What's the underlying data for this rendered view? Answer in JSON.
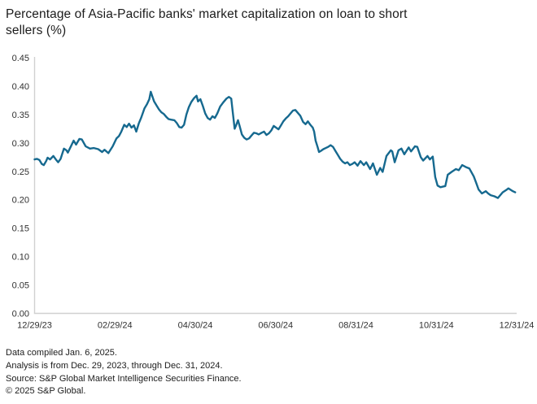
{
  "chart_data": {
    "type": "line",
    "title": "Percentage of Asia-Pacific banks' market capitalization on loan to short sellers (%)",
    "title_line1": "Percentage of Asia-Pacific banks' market capitalization on loan to short",
    "title_line2": "sellers (%)",
    "xlabel": "",
    "ylabel": "",
    "ylim": [
      0,
      0.45
    ],
    "grid": false,
    "legend": false,
    "line_color": "#16698f",
    "axis_color": "#d0d0d0",
    "y_tick_labels": [
      "0.00",
      "0.05",
      "0.10",
      "0.15",
      "0.20",
      "0.25",
      "0.30",
      "0.35",
      "0.40",
      "0.45"
    ],
    "x_tick_labels": [
      "12/29/23",
      "02/29/24",
      "04/30/24",
      "06/30/24",
      "08/31/24",
      "10/31/24",
      "12/31/24"
    ],
    "series_name": "Asia-Pacific banks' market capitalization on loan to short sellers (%)",
    "points": [
      [
        0.0,
        0.271
      ],
      [
        0.005,
        0.272
      ],
      [
        0.01,
        0.27
      ],
      [
        0.015,
        0.263
      ],
      [
        0.019,
        0.261
      ],
      [
        0.024,
        0.268
      ],
      [
        0.027,
        0.274
      ],
      [
        0.032,
        0.271
      ],
      [
        0.039,
        0.277
      ],
      [
        0.044,
        0.271
      ],
      [
        0.049,
        0.266
      ],
      [
        0.054,
        0.272
      ],
      [
        0.061,
        0.29
      ],
      [
        0.066,
        0.287
      ],
      [
        0.069,
        0.283
      ],
      [
        0.076,
        0.295
      ],
      [
        0.081,
        0.304
      ],
      [
        0.086,
        0.297
      ],
      [
        0.093,
        0.307
      ],
      [
        0.098,
        0.306
      ],
      [
        0.106,
        0.294
      ],
      [
        0.115,
        0.29
      ],
      [
        0.123,
        0.291
      ],
      [
        0.132,
        0.289
      ],
      [
        0.14,
        0.284
      ],
      [
        0.145,
        0.288
      ],
      [
        0.153,
        0.282
      ],
      [
        0.162,
        0.294
      ],
      [
        0.17,
        0.308
      ],
      [
        0.175,
        0.312
      ],
      [
        0.18,
        0.32
      ],
      [
        0.186,
        0.332
      ],
      [
        0.191,
        0.328
      ],
      [
        0.196,
        0.334
      ],
      [
        0.201,
        0.327
      ],
      [
        0.206,
        0.331
      ],
      [
        0.211,
        0.32
      ],
      [
        0.216,
        0.334
      ],
      [
        0.221,
        0.344
      ],
      [
        0.228,
        0.361
      ],
      [
        0.233,
        0.368
      ],
      [
        0.238,
        0.377
      ],
      [
        0.241,
        0.39
      ],
      [
        0.245,
        0.38
      ],
      [
        0.248,
        0.373
      ],
      [
        0.253,
        0.366
      ],
      [
        0.258,
        0.359
      ],
      [
        0.263,
        0.354
      ],
      [
        0.268,
        0.351
      ],
      [
        0.273,
        0.346
      ],
      [
        0.278,
        0.342
      ],
      [
        0.283,
        0.341
      ],
      [
        0.29,
        0.34
      ],
      [
        0.295,
        0.335
      ],
      [
        0.3,
        0.328
      ],
      [
        0.305,
        0.327
      ],
      [
        0.31,
        0.332
      ],
      [
        0.315,
        0.35
      ],
      [
        0.32,
        0.363
      ],
      [
        0.325,
        0.372
      ],
      [
        0.331,
        0.379
      ],
      [
        0.336,
        0.383
      ],
      [
        0.339,
        0.373
      ],
      [
        0.344,
        0.377
      ],
      [
        0.349,
        0.365
      ],
      [
        0.354,
        0.352
      ],
      [
        0.359,
        0.344
      ],
      [
        0.364,
        0.341
      ],
      [
        0.369,
        0.347
      ],
      [
        0.374,
        0.344
      ],
      [
        0.379,
        0.352
      ],
      [
        0.385,
        0.364
      ],
      [
        0.391,
        0.371
      ],
      [
        0.398,
        0.378
      ],
      [
        0.403,
        0.381
      ],
      [
        0.408,
        0.378
      ],
      [
        0.411,
        0.355
      ],
      [
        0.415,
        0.325
      ],
      [
        0.418,
        0.331
      ],
      [
        0.422,
        0.34
      ],
      [
        0.425,
        0.331
      ],
      [
        0.43,
        0.315
      ],
      [
        0.435,
        0.309
      ],
      [
        0.44,
        0.306
      ],
      [
        0.445,
        0.308
      ],
      [
        0.45,
        0.313
      ],
      [
        0.455,
        0.318
      ],
      [
        0.46,
        0.317
      ],
      [
        0.465,
        0.315
      ],
      [
        0.471,
        0.318
      ],
      [
        0.476,
        0.32
      ],
      [
        0.481,
        0.314
      ],
      [
        0.486,
        0.317
      ],
      [
        0.491,
        0.322
      ],
      [
        0.496,
        0.33
      ],
      [
        0.501,
        0.327
      ],
      [
        0.506,
        0.324
      ],
      [
        0.511,
        0.331
      ],
      [
        0.516,
        0.338
      ],
      [
        0.521,
        0.343
      ],
      [
        0.526,
        0.347
      ],
      [
        0.531,
        0.352
      ],
      [
        0.536,
        0.357
      ],
      [
        0.541,
        0.358
      ],
      [
        0.546,
        0.353
      ],
      [
        0.551,
        0.348
      ],
      [
        0.557,
        0.337
      ],
      [
        0.562,
        0.333
      ],
      [
        0.567,
        0.338
      ],
      [
        0.572,
        0.332
      ],
      [
        0.577,
        0.327
      ],
      [
        0.58,
        0.32
      ],
      [
        0.583,
        0.304
      ],
      [
        0.587,
        0.293
      ],
      [
        0.59,
        0.284
      ],
      [
        0.594,
        0.286
      ],
      [
        0.599,
        0.289
      ],
      [
        0.604,
        0.291
      ],
      [
        0.609,
        0.293
      ],
      [
        0.614,
        0.296
      ],
      [
        0.619,
        0.293
      ],
      [
        0.624,
        0.286
      ],
      [
        0.629,
        0.279
      ],
      [
        0.634,
        0.272
      ],
      [
        0.639,
        0.267
      ],
      [
        0.644,
        0.264
      ],
      [
        0.649,
        0.266
      ],
      [
        0.654,
        0.261
      ],
      [
        0.659,
        0.263
      ],
      [
        0.664,
        0.266
      ],
      [
        0.67,
        0.26
      ],
      [
        0.676,
        0.268
      ],
      [
        0.683,
        0.261
      ],
      [
        0.688,
        0.266
      ],
      [
        0.696,
        0.254
      ],
      [
        0.702,
        0.264
      ],
      [
        0.71,
        0.244
      ],
      [
        0.717,
        0.256
      ],
      [
        0.722,
        0.249
      ],
      [
        0.73,
        0.277
      ],
      [
        0.739,
        0.287
      ],
      [
        0.742,
        0.285
      ],
      [
        0.747,
        0.266
      ],
      [
        0.755,
        0.287
      ],
      [
        0.761,
        0.29
      ],
      [
        0.767,
        0.28
      ],
      [
        0.776,
        0.292
      ],
      [
        0.781,
        0.285
      ],
      [
        0.789,
        0.294
      ],
      [
        0.794,
        0.293
      ],
      [
        0.801,
        0.275
      ],
      [
        0.806,
        0.269
      ],
      [
        0.815,
        0.277
      ],
      [
        0.82,
        0.271
      ],
      [
        0.826,
        0.276
      ],
      [
        0.831,
        0.24
      ],
      [
        0.836,
        0.225
      ],
      [
        0.842,
        0.222
      ],
      [
        0.847,
        0.223
      ],
      [
        0.852,
        0.224
      ],
      [
        0.857,
        0.244
      ],
      [
        0.865,
        0.249
      ],
      [
        0.874,
        0.254
      ],
      [
        0.88,
        0.252
      ],
      [
        0.887,
        0.261
      ],
      [
        0.896,
        0.257
      ],
      [
        0.902,
        0.255
      ],
      [
        0.911,
        0.241
      ],
      [
        0.916,
        0.23
      ],
      [
        0.921,
        0.218
      ],
      [
        0.928,
        0.211
      ],
      [
        0.936,
        0.215
      ],
      [
        0.941,
        0.211
      ],
      [
        0.946,
        0.208
      ],
      [
        0.954,
        0.206
      ],
      [
        0.961,
        0.203
      ],
      [
        0.971,
        0.213
      ],
      [
        0.98,
        0.218
      ],
      [
        0.983,
        0.22
      ],
      [
        0.992,
        0.215
      ],
      [
        0.997,
        0.213
      ]
    ]
  },
  "footer": {
    "lines": [
      "Data compiled Jan. 6, 2025.",
      "Analysis is from Dec. 29, 2023, through Dec. 31, 2024.",
      "Source: S&P Global Market Intelligence Securities Finance.",
      "© 2025 S&P Global."
    ]
  }
}
